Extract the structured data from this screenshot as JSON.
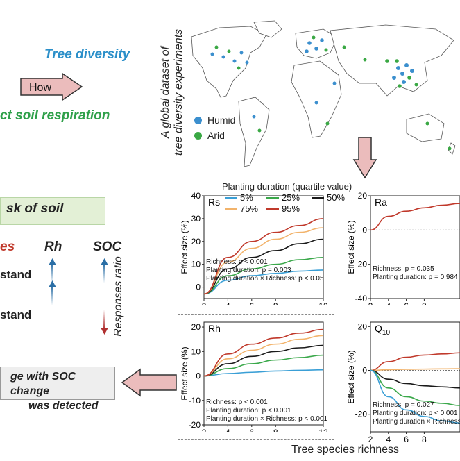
{
  "left_panel": {
    "tree_diversity": "Tree diversity",
    "how": "How",
    "affect_soil_respiration": "ct soil respiration",
    "risk_box": "sk of soil",
    "col_a": "es",
    "col_rh": "Rh",
    "col_soc": "SOC",
    "row1": "stand",
    "row2": "stand",
    "responses_ratio": "Responses ratio",
    "bottom_box_line1": "ge with SOC change",
    "bottom_box_line2": "was detected"
  },
  "map": {
    "title_line1": "A global dataset of",
    "title_line2": "tree diversity experiments",
    "legend": [
      {
        "label": "Humid",
        "color": "#3b8fce"
      },
      {
        "label": "Arid",
        "color": "#3aa844"
      }
    ]
  },
  "planting_legend": {
    "title": "Planting duration (quartile value)",
    "items": [
      {
        "label": "5%",
        "color": "#3a9fd6"
      },
      {
        "label": "25%",
        "color": "#3aa84a"
      },
      {
        "label": "50%",
        "color": "#1a1a1a"
      },
      {
        "label": "75%",
        "color": "#f2b36b"
      },
      {
        "label": "95%",
        "color": "#c0392b"
      }
    ]
  },
  "x_axis_label": "Tree species richness",
  "chart_data": [
    {
      "type": "line",
      "panel": "Rs",
      "ylabel": "Effect size (%)",
      "xlim": [
        2,
        12
      ],
      "ylim": [
        -5,
        40
      ],
      "xticks": [
        "2",
        "4",
        "6",
        "8",
        "12"
      ],
      "yticks": [
        "40",
        "30",
        "20",
        "10",
        "0"
      ],
      "series": [
        {
          "name": "5%",
          "color": "#3a9fd6",
          "x": [
            2,
            4,
            6,
            8,
            10,
            12
          ],
          "y": [
            -3,
            3,
            5,
            6,
            7,
            7.5
          ]
        },
        {
          "name": "25%",
          "color": "#3aa84a",
          "x": [
            2,
            4,
            6,
            8,
            10,
            12
          ],
          "y": [
            -3,
            5,
            8,
            10,
            12,
            13
          ]
        },
        {
          "name": "50%",
          "color": "#1a1a1a",
          "x": [
            2,
            4,
            6,
            8,
            10,
            12
          ],
          "y": [
            -3,
            8,
            13,
            16,
            19,
            21
          ]
        },
        {
          "name": "75%",
          "color": "#f2b36b",
          "x": [
            2,
            4,
            6,
            8,
            10,
            12
          ],
          "y": [
            -3,
            11,
            17,
            21,
            24,
            26
          ]
        },
        {
          "name": "95%",
          "color": "#c0392b",
          "x": [
            2,
            4,
            6,
            8,
            10,
            12
          ],
          "y": [
            -3,
            13,
            20,
            24,
            27,
            30
          ]
        }
      ],
      "stats": [
        "Richness: p < 0.001",
        "Planting duration: p = 0.003",
        "Planting duration × Richness: p < 0.05"
      ]
    },
    {
      "type": "line",
      "panel": "Ra",
      "ylabel": "Effect size (%)",
      "xlim": [
        2,
        12
      ],
      "ylim": [
        -40,
        20
      ],
      "xticks": [
        "2",
        "4",
        "6",
        "8"
      ],
      "yticks": [
        "20",
        "0",
        "-20",
        "-40"
      ],
      "series": [
        {
          "name": "95%",
          "color": "#c0392b",
          "x": [
            2,
            4,
            6,
            8,
            10,
            12
          ],
          "y": [
            0,
            8,
            11,
            13,
            14.5,
            15.5
          ]
        }
      ],
      "stats": [
        "Richness: p = 0.035",
        "Planting duration: p = 0.984"
      ]
    },
    {
      "type": "line",
      "panel": "Rh",
      "ylabel": "Effect size (%)",
      "xlim": [
        2,
        12
      ],
      "ylim": [
        -20,
        22
      ],
      "xticks": [
        "2",
        "4",
        "6",
        "8",
        "12"
      ],
      "yticks": [
        "20",
        "10",
        "0",
        "-10",
        "-20"
      ],
      "series": [
        {
          "name": "5%",
          "color": "#3a9fd6",
          "x": [
            2,
            4,
            6,
            8,
            10,
            12
          ],
          "y": [
            0,
            1,
            1.5,
            2,
            2.3,
            2.5
          ]
        },
        {
          "name": "25%",
          "color": "#3aa84a",
          "x": [
            2,
            4,
            6,
            8,
            10,
            12
          ],
          "y": [
            0,
            3,
            5,
            6.5,
            7.5,
            8.5
          ]
        },
        {
          "name": "50%",
          "color": "#1a1a1a",
          "x": [
            2,
            4,
            6,
            8,
            10,
            12
          ],
          "y": [
            0,
            5,
            8,
            10,
            11.5,
            12.5
          ]
        },
        {
          "name": "75%",
          "color": "#f2b36b",
          "x": [
            2,
            4,
            6,
            8,
            10,
            12
          ],
          "y": [
            0,
            7,
            10.5,
            13,
            15,
            16.5
          ]
        },
        {
          "name": "95%",
          "color": "#c0392b",
          "x": [
            2,
            4,
            6,
            8,
            10,
            12
          ],
          "y": [
            0,
            9,
            13,
            15.5,
            17.5,
            19
          ]
        }
      ],
      "stats": [
        "Richness: p < 0.001",
        "Planting duration: p < 0.001",
        "Planting duration × Richness: p < 0.001"
      ]
    },
    {
      "type": "line",
      "panel": "Q10",
      "ylabel": "Effect size (%)",
      "xlim": [
        2,
        12
      ],
      "ylim": [
        -28,
        22
      ],
      "xticks": [
        "2",
        "4",
        "6",
        "8"
      ],
      "yticks": [
        "20",
        "0",
        "-20"
      ],
      "series": [
        {
          "name": "95%",
          "color": "#c0392b",
          "x": [
            2,
            4,
            6,
            8,
            10,
            12
          ],
          "y": [
            0,
            4,
            6,
            7,
            7.5,
            8
          ]
        },
        {
          "name": "75%",
          "color": "#f2b36b",
          "x": [
            2,
            4,
            6,
            8,
            10,
            12
          ],
          "y": [
            0,
            0.3,
            0.5,
            0.6,
            0.7,
            0.8
          ]
        },
        {
          "name": "50%",
          "color": "#1a1a1a",
          "x": [
            2,
            4,
            6,
            8,
            10,
            12
          ],
          "y": [
            0,
            -4,
            -6,
            -7,
            -7.5,
            -8
          ]
        },
        {
          "name": "25%",
          "color": "#3aa84a",
          "x": [
            2,
            4,
            6,
            8,
            10,
            12
          ],
          "y": [
            0,
            -8,
            -12,
            -14,
            -15,
            -16
          ]
        },
        {
          "name": "5%",
          "color": "#3a9fd6",
          "x": [
            2,
            4,
            6,
            8,
            10,
            12
          ],
          "y": [
            0,
            -12,
            -18,
            -21,
            -23,
            -24
          ]
        }
      ],
      "stats": [
        "Richness: p = 0.027",
        "Planting duration: p < 0.001",
        "Planting duration × Richness"
      ]
    }
  ]
}
